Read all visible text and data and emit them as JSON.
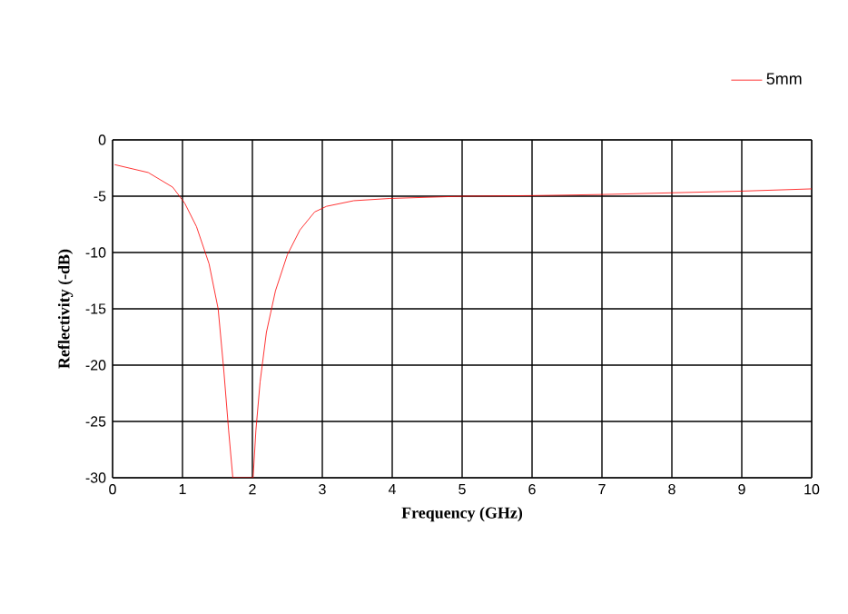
{
  "chart_data": {
    "type": "line",
    "xlabel": "Frequency (GHz)",
    "ylabel": "Reflectivity (-dB)",
    "xlim": [
      0,
      10
    ],
    "ylim": [
      -30,
      0
    ],
    "xticks": [
      0,
      1,
      2,
      3,
      4,
      5,
      6,
      7,
      8,
      9,
      10
    ],
    "yticks": [
      -30,
      -25,
      -20,
      -15,
      -10,
      -5,
      0
    ],
    "grid": true,
    "legend": "top right",
    "line_style": "solid",
    "series": [
      {
        "name": "5mm",
        "color": "#ff0000",
        "x": [
          0.03,
          0.51,
          0.86,
          1.03,
          1.2,
          1.38,
          1.51,
          1.59,
          1.66,
          1.72,
          2.01,
          2.05,
          2.11,
          2.2,
          2.33,
          2.5,
          2.68,
          2.89,
          3.06,
          3.45,
          3.97,
          5.01,
          6,
          7,
          8,
          9,
          10
        ],
        "values": [
          -2.2,
          -2.9,
          -4.2,
          -5.6,
          -7.7,
          -11.0,
          -15.0,
          -20.4,
          -25.8,
          -30,
          -30,
          -25.8,
          -21.5,
          -17.1,
          -13.4,
          -10.2,
          -8.0,
          -6.4,
          -5.9,
          -5.4,
          -5.2,
          -5.0,
          -4.95,
          -4.85,
          -4.7,
          -4.55,
          -4.35
        ]
      }
    ]
  }
}
